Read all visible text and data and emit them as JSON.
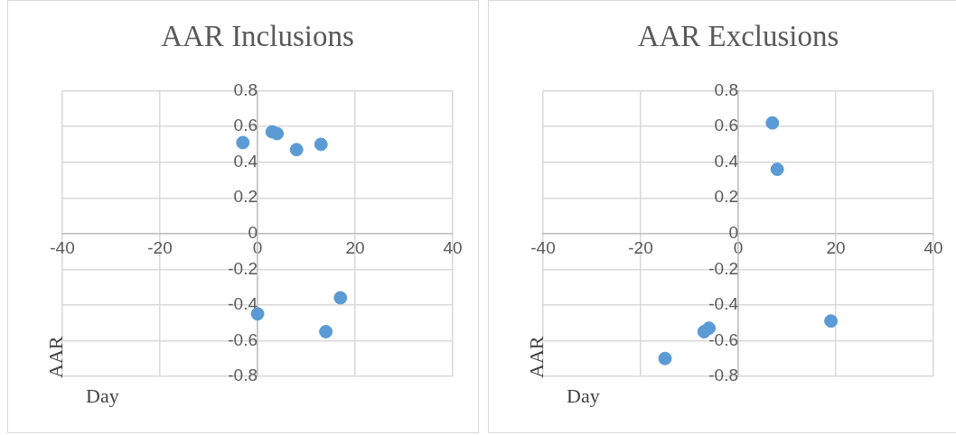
{
  "chart_data": [
    {
      "type": "scatter",
      "title": "AAR Inclusions",
      "xlabel": "Day",
      "ylabel": "AAR",
      "series": [
        {
          "color": "#5b9bd5",
          "x": [
            -3,
            3,
            4,
            8,
            13,
            0,
            17,
            14
          ],
          "values": [
            0.51,
            0.57,
            0.56,
            0.47,
            0.5,
            -0.45,
            -0.36,
            -0.55
          ]
        }
      ],
      "xlim": [
        -40,
        40
      ],
      "xticks": [
        -40,
        -20,
        0,
        20,
        40
      ],
      "ylim": [
        -0.8,
        0.8
      ],
      "yticks": [
        -0.8,
        -0.6,
        -0.4,
        -0.2,
        0,
        0.2,
        0.4,
        0.6,
        0.8
      ],
      "grid": true,
      "marker": "circle"
    },
    {
      "type": "scatter",
      "title": "AAR Exclusions",
      "xlabel": "Day",
      "ylabel": "AAR",
      "series": [
        {
          "color": "#5b9bd5",
          "x": [
            7,
            8,
            19,
            -6,
            -7,
            -15
          ],
          "values": [
            0.62,
            0.36,
            -0.49,
            -0.53,
            -0.55,
            -0.7
          ]
        }
      ],
      "xlim": [
        -40,
        40
      ],
      "xticks": [
        -40,
        -20,
        0,
        20,
        40
      ],
      "ylim": [
        -0.8,
        0.8
      ],
      "yticks": [
        -0.8,
        -0.6,
        -0.4,
        -0.2,
        0,
        0.2,
        0.4,
        0.6,
        0.8
      ],
      "grid": true,
      "marker": "circle"
    }
  ]
}
